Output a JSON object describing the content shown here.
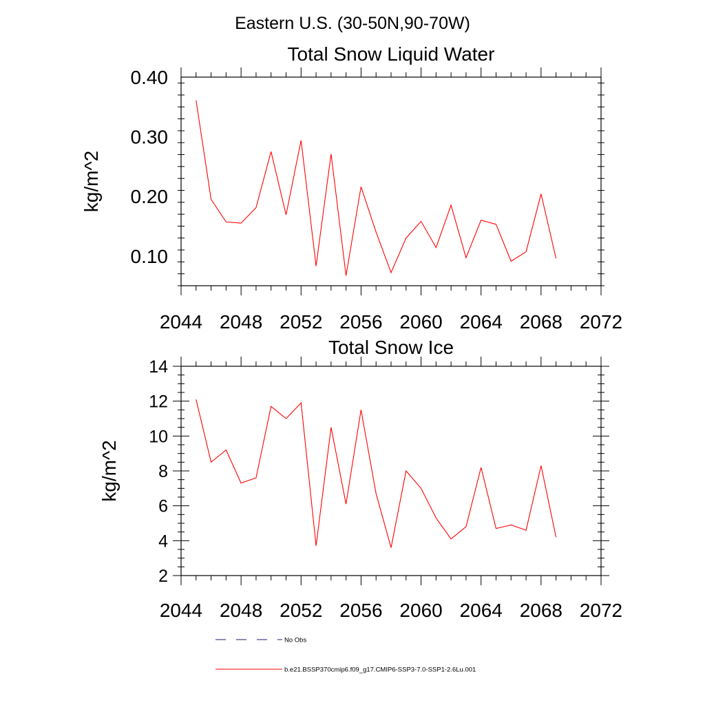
{
  "figure": {
    "title": "Eastern U.S. (30-50N,90-70W)"
  },
  "chart_data": [
    {
      "type": "line",
      "title": "Total Snow Liquid Water",
      "xlabel": "",
      "ylabel": "kg/m^2",
      "xlim": [
        2044,
        2072
      ],
      "ylim": [
        0.05,
        0.4
      ],
      "xticks": [
        2044,
        2048,
        2052,
        2056,
        2060,
        2064,
        2068,
        2072
      ],
      "xtick_labels": [
        "2044",
        "2048",
        "2052",
        "2056",
        "2060",
        "2064",
        "2068",
        "2072"
      ],
      "yticks": [
        0.1,
        0.2,
        0.3,
        0.4
      ],
      "ytick_labels": [
        "0.10",
        "0.20",
        "0.30",
        "0.40"
      ],
      "grid": false,
      "x": [
        2045,
        2046,
        2047,
        2048,
        2049,
        2050,
        2051,
        2052,
        2053,
        2054,
        2055,
        2056,
        2057,
        2058,
        2059,
        2060,
        2061,
        2062,
        2063,
        2064,
        2065,
        2066,
        2067,
        2068,
        2069
      ],
      "series": [
        {
          "name": "b.e21.BSSP370cmip6.f09_g17.CMIP6-SSP3-7.0-SSP1-2.6Lu.001",
          "color": "#ff0000",
          "values": [
            0.361,
            0.195,
            0.157,
            0.155,
            0.181,
            0.275,
            0.169,
            0.294,
            0.083,
            0.271,
            0.067,
            0.216,
            0.14,
            0.072,
            0.13,
            0.158,
            0.114,
            0.185,
            0.097,
            0.16,
            0.153,
            0.091,
            0.107,
            0.204,
            0.096
          ]
        }
      ]
    },
    {
      "type": "line",
      "title": "Total Snow Ice",
      "xlabel": "",
      "ylabel": "kg/m^2",
      "xlim": [
        2044,
        2072
      ],
      "ylim": [
        2,
        14
      ],
      "xticks": [
        2044,
        2048,
        2052,
        2056,
        2060,
        2064,
        2068,
        2072
      ],
      "xtick_labels": [
        "2044",
        "2048",
        "2052",
        "2056",
        "2060",
        "2064",
        "2068",
        "2072"
      ],
      "yticks": [
        2,
        4,
        6,
        8,
        10,
        12,
        14
      ],
      "ytick_labels": [
        "2",
        "4",
        "6",
        "8",
        "10",
        "12",
        "14"
      ],
      "grid": false,
      "x": [
        2045,
        2046,
        2047,
        2048,
        2049,
        2050,
        2051,
        2052,
        2053,
        2054,
        2055,
        2056,
        2057,
        2058,
        2059,
        2060,
        2061,
        2062,
        2063,
        2064,
        2065,
        2066,
        2067,
        2068,
        2069
      ],
      "series": [
        {
          "name": "b.e21.BSSP370cmip6.f09_g17.CMIP6-SSP3-7.0-SSP1-2.6Lu.001",
          "color": "#ff0000",
          "values": [
            12.1,
            8.5,
            9.2,
            7.3,
            7.6,
            11.7,
            11.0,
            11.9,
            3.7,
            10.5,
            6.1,
            11.5,
            6.7,
            3.6,
            8.0,
            7.0,
            5.3,
            4.1,
            4.8,
            8.2,
            4.7,
            4.9,
            4.6,
            8.3,
            4.2
          ]
        }
      ]
    }
  ],
  "legend": {
    "placement": "bottom",
    "items": [
      {
        "label": "No Obs",
        "color": "#1a1a6e",
        "style": "dashed"
      },
      {
        "label": "b.e21.BSSP370cmip6.f09_g17.CMIP6-SSP3-7.0-SSP1-2.6Lu.001",
        "color": "#ff0000",
        "style": "solid"
      }
    ]
  }
}
